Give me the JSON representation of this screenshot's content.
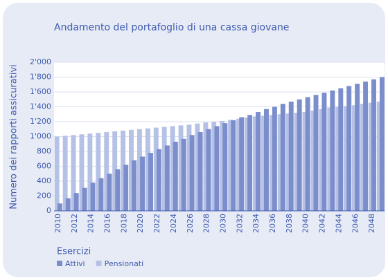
{
  "chart_data": {
    "type": "bar",
    "title": "Andamento del portafoglio di una cassa giovane",
    "y_label": "Numero dei rapporti assicurativi",
    "x_label": "Esercizi",
    "categories": [
      "2010",
      null,
      "2012",
      null,
      "2014",
      null,
      "2016",
      null,
      "2018",
      null,
      "2020",
      null,
      "2022",
      null,
      "2024",
      null,
      "2026",
      null,
      "2028",
      null,
      "2030",
      null,
      "2032",
      null,
      "2034",
      null,
      "2036",
      null,
      "2038",
      null,
      "2040",
      null,
      "2042",
      null,
      "2044",
      null,
      "2046",
      null,
      "2048",
      null
    ],
    "series": [
      {
        "name": "Attivi",
        "color": "#7b8dcb",
        "values": [
          100,
          170,
          240,
          310,
          380,
          440,
          500,
          560,
          620,
          680,
          730,
          780,
          830,
          880,
          930,
          970,
          1020,
          1060,
          1100,
          1140,
          1180,
          1220,
          1260,
          1290,
          1330,
          1370,
          1400,
          1440,
          1470,
          1500,
          1530,
          1560,
          1590,
          1620,
          1650,
          1680,
          1710,
          1740,
          1770,
          1800
        ]
      },
      {
        "name": "Pensionati",
        "color": "#b6c1e6",
        "values": [
          1000,
          1010,
          1020,
          1030,
          1040,
          1050,
          1060,
          1070,
          1080,
          1090,
          1100,
          1110,
          1120,
          1130,
          1140,
          1150,
          1160,
          1175,
          1190,
          1200,
          1210,
          1225,
          1240,
          1255,
          1270,
          1280,
          1290,
          1300,
          1310,
          1320,
          1330,
          1350,
          1370,
          1390,
          1400,
          1410,
          1420,
          1440,
          1455,
          1470
        ]
      }
    ],
    "ylim": [
      0,
      2000
    ],
    "yticks": [
      0,
      200,
      400,
      600,
      800,
      {
        "value": 1000,
        "label": "1'000"
      },
      {
        "value": 1200,
        "label": "1'200"
      },
      {
        "value": 1400,
        "label": "1'400"
      },
      {
        "value": 1600,
        "label": "1'600"
      },
      {
        "value": 1800,
        "label": "1'800"
      },
      {
        "value": 2000,
        "label": "2'000"
      }
    ],
    "grid": true
  }
}
